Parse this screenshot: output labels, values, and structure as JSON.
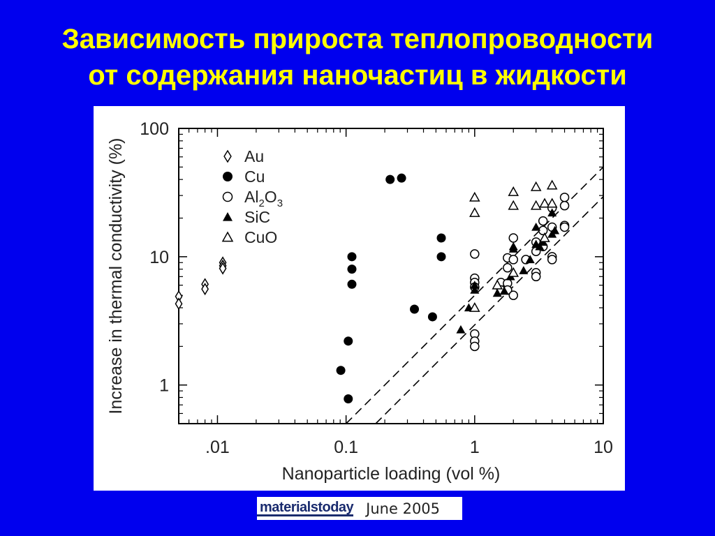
{
  "title": {
    "line1": "Зависимость прироста теплопроводности",
    "line2": "от содержания наночастиц в жидкости"
  },
  "source": {
    "logo": "materialstoday",
    "date": "June 2005"
  },
  "colors": {
    "background": "#0000ee",
    "title": "#ffff00",
    "chart_bg": "#ffffff",
    "ink": "#000000"
  },
  "chart_data": {
    "type": "scatter",
    "title": "",
    "xlabel": "Nanoparticle loading (vol %)",
    "ylabel": "Increase in thermal conductivity (%)",
    "xscale": "log",
    "yscale": "log",
    "xlim": [
      0.005,
      10
    ],
    "ylim": [
      0.5,
      100
    ],
    "x_ticks": [
      {
        "value": 0.01,
        "label": ".01"
      },
      {
        "value": 0.1,
        "label": "0.1"
      },
      {
        "value": 1,
        "label": "1"
      },
      {
        "value": 10,
        "label": "10"
      }
    ],
    "y_ticks": [
      {
        "value": 1,
        "label": "1"
      },
      {
        "value": 10,
        "label": "10"
      },
      {
        "value": 100,
        "label": "100"
      }
    ],
    "grid": false,
    "legend_position": "top-left",
    "series": [
      {
        "name": "Au",
        "marker": "open-diamond",
        "points": [
          [
            0.005,
            4.9
          ],
          [
            0.005,
            4.3
          ],
          [
            0.008,
            6.1
          ],
          [
            0.008,
            5.6
          ],
          [
            0.011,
            9.0
          ],
          [
            0.011,
            8.5
          ],
          [
            0.011,
            8.1
          ]
        ]
      },
      {
        "name": "Cu",
        "marker": "filled-circle",
        "points": [
          [
            0.091,
            1.3
          ],
          [
            0.104,
            0.78
          ],
          [
            0.104,
            2.2
          ],
          [
            0.111,
            10
          ],
          [
            0.111,
            8
          ],
          [
            0.111,
            6.1
          ],
          [
            0.22,
            40
          ],
          [
            0.27,
            41
          ],
          [
            0.34,
            3.9
          ],
          [
            0.47,
            3.4
          ],
          [
            0.55,
            14
          ],
          [
            0.55,
            10
          ]
        ]
      },
      {
        "name": "Al2O3",
        "marker": "open-circle",
        "points": [
          [
            1.0,
            10.5
          ],
          [
            1.0,
            6.8
          ],
          [
            1.0,
            6.3
          ],
          [
            1.0,
            5.8
          ],
          [
            1.0,
            2.5
          ],
          [
            1.0,
            2.2
          ],
          [
            1.0,
            2.0
          ],
          [
            1.6,
            6.3
          ],
          [
            1.6,
            5.5
          ],
          [
            1.8,
            9.8
          ],
          [
            1.8,
            8.2
          ],
          [
            1.8,
            6.2
          ],
          [
            1.8,
            5.5
          ],
          [
            2.0,
            14
          ],
          [
            2.0,
            9.5
          ],
          [
            2.0,
            5.0
          ],
          [
            2.5,
            9.5
          ],
          [
            3.0,
            13
          ],
          [
            3.0,
            11
          ],
          [
            3.0,
            7.5
          ],
          [
            3.0,
            7.0
          ],
          [
            3.4,
            19
          ],
          [
            3.4,
            16
          ],
          [
            3.4,
            12
          ],
          [
            4.0,
            24
          ],
          [
            4.0,
            17
          ],
          [
            4.0,
            10
          ],
          [
            4.0,
            9.5
          ],
          [
            5.0,
            29
          ],
          [
            5.0,
            25
          ],
          [
            5.0,
            17.5
          ],
          [
            5.0,
            17
          ]
        ]
      },
      {
        "name": "SiC",
        "marker": "filled-triangle",
        "points": [
          [
            0.78,
            2.7
          ],
          [
            0.9,
            4.0
          ],
          [
            1.0,
            6.0
          ],
          [
            1.0,
            5.5
          ],
          [
            1.5,
            5.2
          ],
          [
            1.7,
            5.4
          ],
          [
            1.9,
            7.0
          ],
          [
            2.0,
            11.5
          ],
          [
            2.0,
            12.0
          ],
          [
            2.4,
            7.8
          ],
          [
            2.7,
            9.5
          ],
          [
            3.0,
            17
          ],
          [
            3.0,
            12.5
          ],
          [
            3.2,
            12
          ],
          [
            3.4,
            13
          ],
          [
            4.0,
            22
          ],
          [
            4.0,
            15
          ],
          [
            4.2,
            16
          ]
        ]
      },
      {
        "name": "CuO",
        "marker": "open-triangle",
        "points": [
          [
            1.0,
            29
          ],
          [
            1.0,
            22
          ],
          [
            1.0,
            4.0
          ],
          [
            1.5,
            6.0
          ],
          [
            2.0,
            32
          ],
          [
            2.0,
            25
          ],
          [
            2.0,
            7.5
          ],
          [
            3.0,
            35
          ],
          [
            3.0,
            25
          ],
          [
            3.5,
            26
          ],
          [
            3.5,
            14
          ],
          [
            4.0,
            36
          ],
          [
            4.0,
            26
          ]
        ]
      }
    ],
    "reference_lines": [
      {
        "style": "dashed",
        "points": [
          [
            0.1,
            0.5
          ],
          [
            10,
            50
          ]
        ]
      },
      {
        "style": "dashed",
        "points": [
          [
            0.17,
            0.5
          ],
          [
            10,
            29.4
          ]
        ]
      }
    ]
  }
}
